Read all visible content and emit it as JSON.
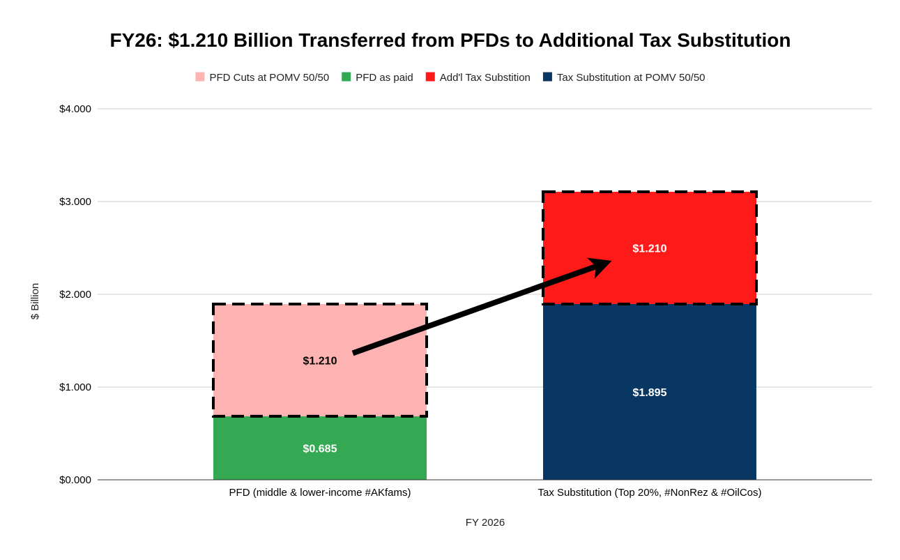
{
  "chart_data": {
    "type": "bar",
    "stacked": true,
    "title": "FY26: $1.210 Billion Transferred from PFDs to Additional Tax Substitution",
    "xlabel": "FY 2026",
    "ylabel": "$ Billion",
    "ylim": [
      0,
      4
    ],
    "yticks": [
      {
        "value": 0,
        "label": "$0.000"
      },
      {
        "value": 1,
        "label": "$1.000"
      },
      {
        "value": 2,
        "label": "$2.000"
      },
      {
        "value": 3,
        "label": "$3.000"
      },
      {
        "value": 4,
        "label": "$4.000"
      }
    ],
    "grid": true,
    "legend_position": "top",
    "categories": [
      "PFD (middle & lower-income #AKfams)",
      "Tax Substitution (Top 20%, #NonRez & #OilCos)"
    ],
    "series": [
      {
        "name": "PFD Cuts at POMV 50/50",
        "color": "#feb3b3",
        "values": [
          1.21,
          0
        ],
        "labels": [
          "$1.210",
          ""
        ],
        "label_color": "#000000",
        "dashed_outline": true
      },
      {
        "name": "PFD as paid",
        "color": "#34a853",
        "values": [
          0.685,
          0
        ],
        "labels": [
          "$0.685",
          ""
        ],
        "label_color": "#ffffff",
        "dashed_outline": false
      },
      {
        "name": "Add'l Tax Substition",
        "color": "#ff1a1a",
        "values": [
          0,
          1.21
        ],
        "labels": [
          "",
          "$1.210"
        ],
        "label_color": "#ffffff",
        "dashed_outline": true
      },
      {
        "name": "Tax Substitution at POMV 50/50",
        "color": "#083763",
        "values": [
          0,
          1.895
        ],
        "labels": [
          "",
          "$1.895"
        ],
        "label_color": "#ffffff",
        "dashed_outline": false
      }
    ],
    "stack_order": [
      "PFD as paid",
      "PFD Cuts at POMV 50/50",
      "Tax Substitution at POMV 50/50",
      "Add'l Tax Substition"
    ],
    "annotations": [
      {
        "type": "arrow",
        "description": "transfer from PFD cuts to additional tax substitution",
        "from": {
          "category": 0,
          "y": 1.35
        },
        "to": {
          "category": 1,
          "y": 2.4
        }
      }
    ]
  }
}
